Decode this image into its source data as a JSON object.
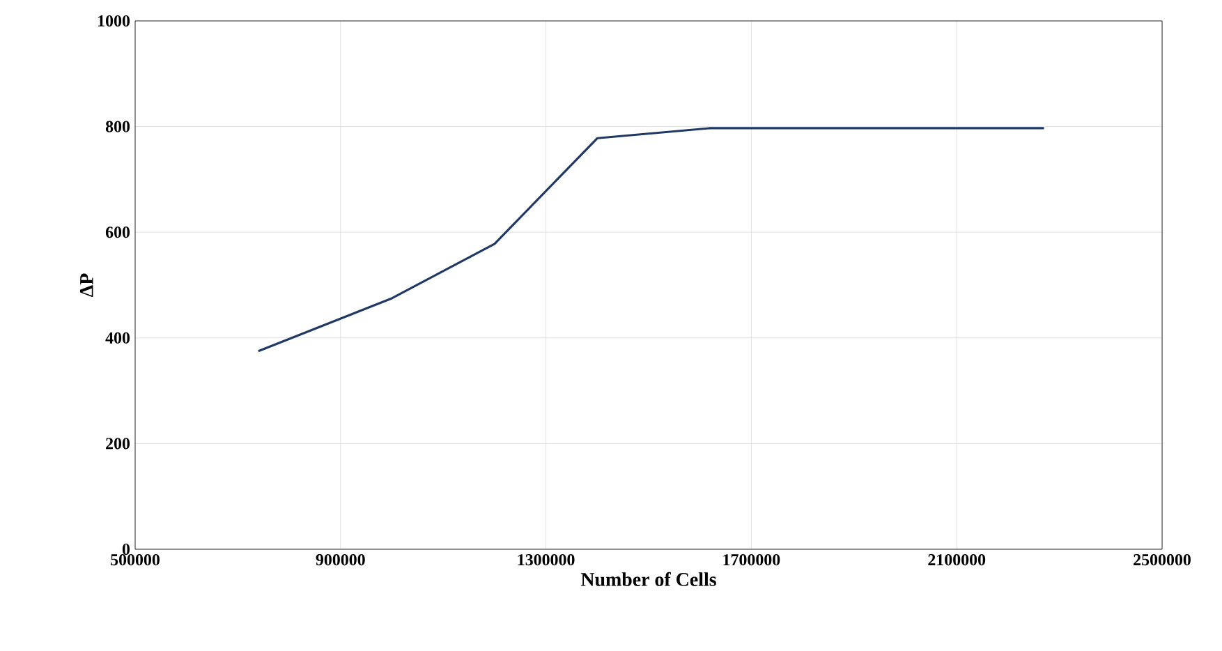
{
  "chart_data": {
    "type": "line",
    "xlabel": "Number of Cells",
    "ylabel": "ΔP",
    "x": [
      740000,
      1000000,
      1200000,
      1400000,
      1620000,
      2270000
    ],
    "series": [
      {
        "color": "#203864",
        "values": [
          375,
          475,
          578,
          778,
          797,
          797
        ]
      }
    ],
    "xlim": [
      500000,
      2500000
    ],
    "xticks": [
      500000,
      900000,
      1300000,
      1700000,
      2100000,
      2500000
    ],
    "ylim": [
      0,
      1000
    ],
    "yticks": [
      0,
      200,
      400,
      600,
      800,
      1000
    ],
    "grid": true,
    "marker": "none",
    "line_style": "solid"
  }
}
